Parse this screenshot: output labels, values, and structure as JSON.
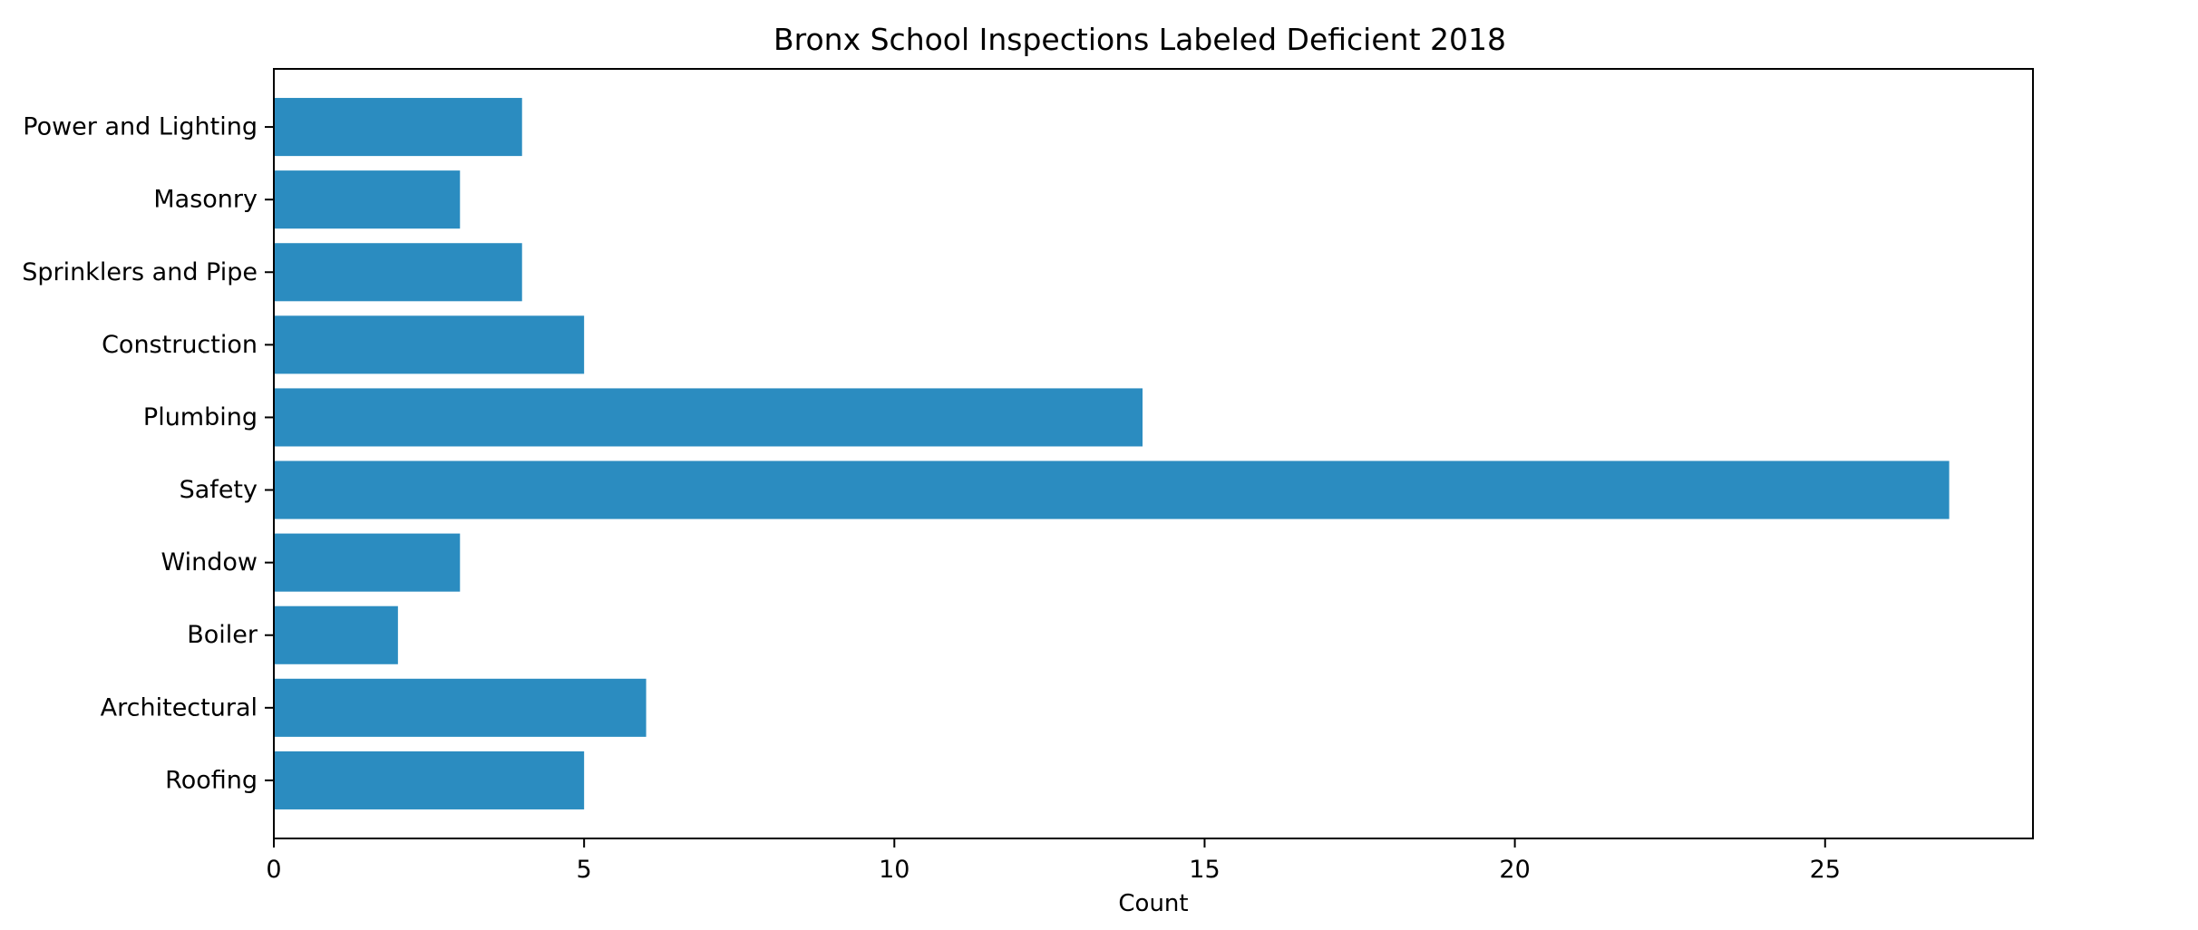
{
  "chart_data": {
    "type": "bar",
    "orientation": "horizontal",
    "title": "Bronx School Inspections Labeled Deficient 2018",
    "xlabel": "Count",
    "ylabel": "",
    "categories": [
      "Power and Lighting",
      "Masonry",
      "Sprinklers and Pipe",
      "Construction",
      "Plumbing",
      "Safety",
      "Window",
      "Boiler",
      "Architectural",
      "Roofing"
    ],
    "values": [
      4,
      3,
      4,
      5,
      14,
      27,
      3,
      2,
      6,
      5
    ],
    "xlim": [
      0,
      28.35
    ],
    "xticks": [
      0,
      5,
      10,
      15,
      20,
      25
    ],
    "grid": false,
    "bar_color": "#2b8cc0"
  }
}
